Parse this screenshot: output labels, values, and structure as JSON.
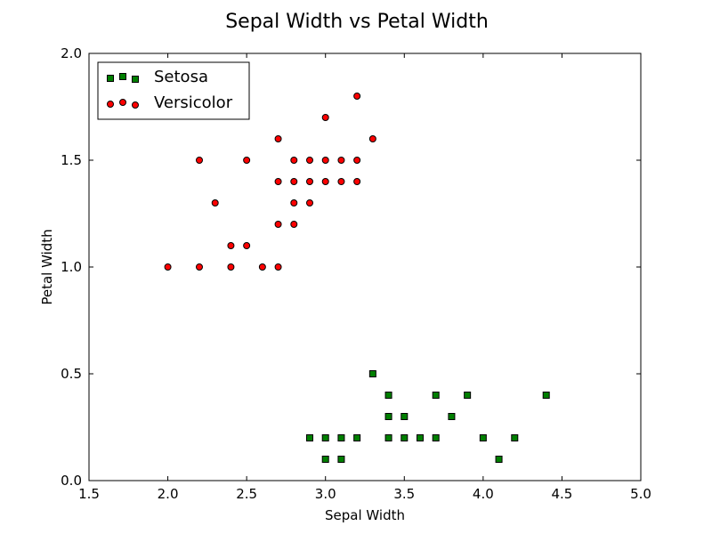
{
  "chart_data": {
    "type": "scatter",
    "title": "Sepal Width vs Petal Width",
    "xlabel": "Sepal Width",
    "ylabel": "Petal Width",
    "xlim": [
      1.5,
      5.0
    ],
    "ylim": [
      0.0,
      2.0
    ],
    "xticks": [
      "1.5",
      "2.0",
      "2.5",
      "3.0",
      "3.5",
      "4.0",
      "4.5",
      "5.0"
    ],
    "yticks": [
      "0.0",
      "0.5",
      "1.0",
      "1.5",
      "2.0"
    ],
    "grid": false,
    "legend_position": "upper-left",
    "series": [
      {
        "name": "Setosa",
        "marker": "square",
        "color": "#007f00",
        "points": [
          [
            3.3,
            0.5
          ],
          [
            3.4,
            0.4
          ],
          [
            3.7,
            0.4
          ],
          [
            3.9,
            0.4
          ],
          [
            4.4,
            0.4
          ],
          [
            3.4,
            0.3
          ],
          [
            3.5,
            0.3
          ],
          [
            3.8,
            0.3
          ],
          [
            2.9,
            0.2
          ],
          [
            3.0,
            0.2
          ],
          [
            3.1,
            0.2
          ],
          [
            3.2,
            0.2
          ],
          [
            3.4,
            0.2
          ],
          [
            3.5,
            0.2
          ],
          [
            3.6,
            0.2
          ],
          [
            3.7,
            0.2
          ],
          [
            4.0,
            0.2
          ],
          [
            4.2,
            0.2
          ],
          [
            3.0,
            0.1
          ],
          [
            3.1,
            0.1
          ],
          [
            4.1,
            0.1
          ]
        ]
      },
      {
        "name": "Versicolor",
        "marker": "circle",
        "color": "#ff0000",
        "points": [
          [
            3.2,
            1.8
          ],
          [
            3.0,
            1.7
          ],
          [
            2.7,
            1.6
          ],
          [
            3.3,
            1.6
          ],
          [
            2.2,
            1.5
          ],
          [
            2.5,
            1.5
          ],
          [
            2.8,
            1.5
          ],
          [
            2.9,
            1.5
          ],
          [
            3.0,
            1.5
          ],
          [
            3.1,
            1.5
          ],
          [
            3.2,
            1.5
          ],
          [
            2.7,
            1.4
          ],
          [
            2.8,
            1.4
          ],
          [
            2.9,
            1.4
          ],
          [
            3.0,
            1.4
          ],
          [
            3.1,
            1.4
          ],
          [
            3.2,
            1.4
          ],
          [
            2.3,
            1.3
          ],
          [
            2.8,
            1.3
          ],
          [
            2.9,
            1.3
          ],
          [
            2.7,
            1.2
          ],
          [
            2.8,
            1.2
          ],
          [
            2.4,
            1.1
          ],
          [
            2.5,
            1.1
          ],
          [
            2.0,
            1.0
          ],
          [
            2.2,
            1.0
          ],
          [
            2.4,
            1.0
          ],
          [
            2.6,
            1.0
          ],
          [
            2.7,
            1.0
          ]
        ]
      }
    ]
  }
}
